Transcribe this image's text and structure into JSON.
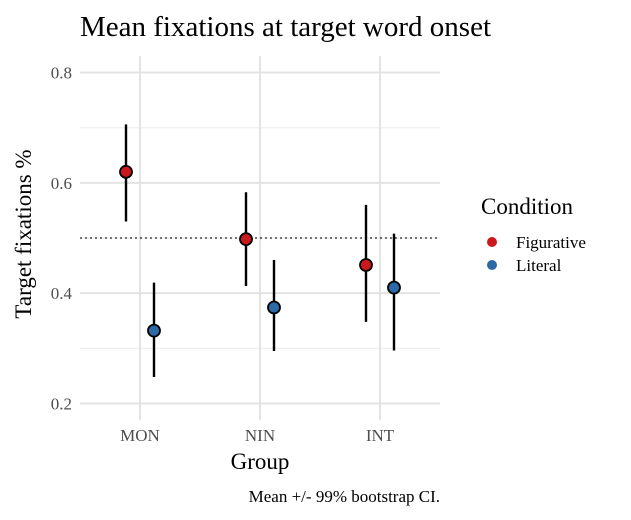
{
  "chart_data": {
    "type": "scatter",
    "title": "Mean fixations at target word onset",
    "xlabel": "Group",
    "ylabel": "Target fixations %",
    "caption": "Mean +/- 99% bootstrap CI.",
    "categories": [
      "MON",
      "NIN",
      "INT"
    ],
    "ylim": [
      0.17,
      0.83
    ],
    "yticks": [
      "0.2",
      "0.4",
      "0.6",
      "0.8"
    ],
    "reference_line": 0.5,
    "grid": true,
    "legend": {
      "title": "Condition",
      "placement": "right",
      "entries": [
        "Figurative",
        "Literal"
      ]
    },
    "series": [
      {
        "name": "Figurative",
        "color": "#cb181d",
        "values": [
          0.62,
          0.498,
          0.451
        ],
        "ci_low": [
          0.53,
          0.413,
          0.348
        ],
        "ci_high": [
          0.706,
          0.583,
          0.56
        ]
      },
      {
        "name": "Literal",
        "color": "#2c6aa6",
        "values": [
          0.332,
          0.374,
          0.41
        ],
        "ci_low": [
          0.248,
          0.295,
          0.296
        ],
        "ci_high": [
          0.419,
          0.46,
          0.508
        ]
      }
    ]
  }
}
